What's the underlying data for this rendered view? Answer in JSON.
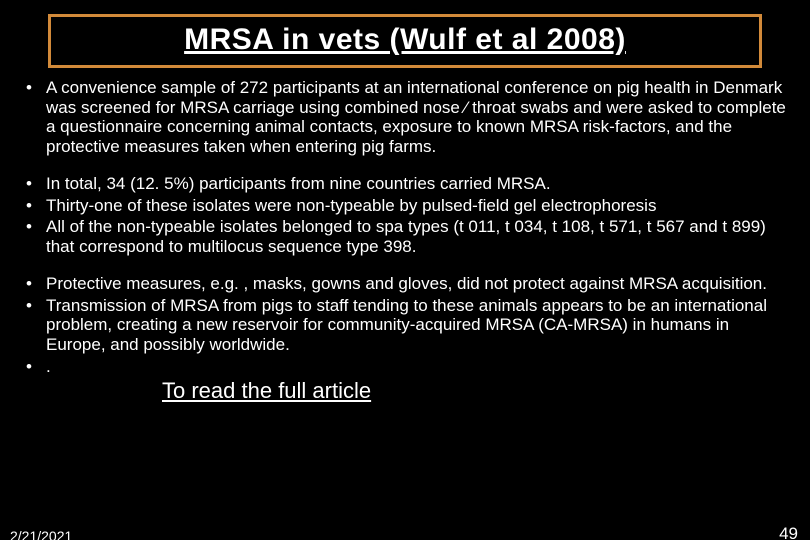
{
  "slide": {
    "title": "MRSA in vets (Wulf et al 2008)",
    "title_border_color": "#d28a3a",
    "background_color": "#000000",
    "text_color": "#ffffff",
    "title_fontsize": 30,
    "body_fontsize": 17,
    "bullet_groups": [
      [
        "A convenience sample of 272 participants at an international conference on pig health in Denmark was screened for MRSA carriage using combined nose ⁄ throat swabs and were asked to complete a questionnaire concerning animal contacts, exposure to known MRSA risk-factors, and the protective measures taken when entering pig farms."
      ],
      [
        " In total, 34 (12. 5%) participants from nine countries carried MRSA.",
        " Thirty-one of these isolates were non-typeable by pulsed-field gel electrophoresis",
        " All of the non-typeable isolates belonged to spa types (t 011, t 034, t 108, t 571, t 567 and t 899) that correspond to multilocus sequence type 398."
      ],
      [
        " Protective measures, e.g. , masks, gowns and gloves, did not protect against MRSA acquisition.",
        " Transmission of MRSA from pigs to staff tending to these animals appears to be an international problem, creating a new reservoir for community-acquired MRSA (CA-MRSA) in humans in Europe, and possibly worldwide.",
        " ."
      ]
    ],
    "link_text": "To read the full article",
    "link_fontsize": 22,
    "footer_date": "2/21/2021",
    "footer_page": "49"
  }
}
